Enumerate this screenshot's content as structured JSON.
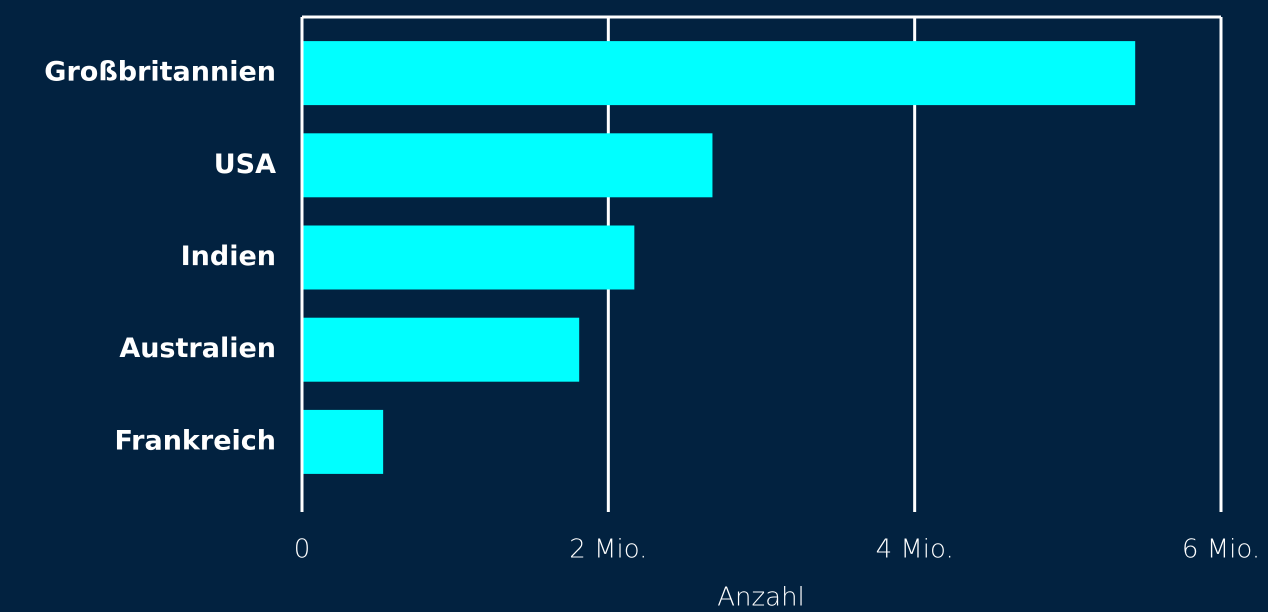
{
  "chart_data": {
    "type": "barh",
    "categories": [
      "Großbritannien",
      "USA",
      "Indien",
      "Australien",
      "Frankreich"
    ],
    "values": [
      5430000,
      2670000,
      2160000,
      1800000,
      520000
    ],
    "color": "#00ffff",
    "xlabel": "Anzahl",
    "xlim": [
      0,
      6000000
    ],
    "xticks": [
      0,
      {
        "value": 2000000,
        "label": "2 Mio."
      },
      {
        "value": 4000000,
        "label": "4 Mio."
      },
      {
        "value": 6000000,
        "label": "6 Mio."
      }
    ],
    "grid": true
  }
}
